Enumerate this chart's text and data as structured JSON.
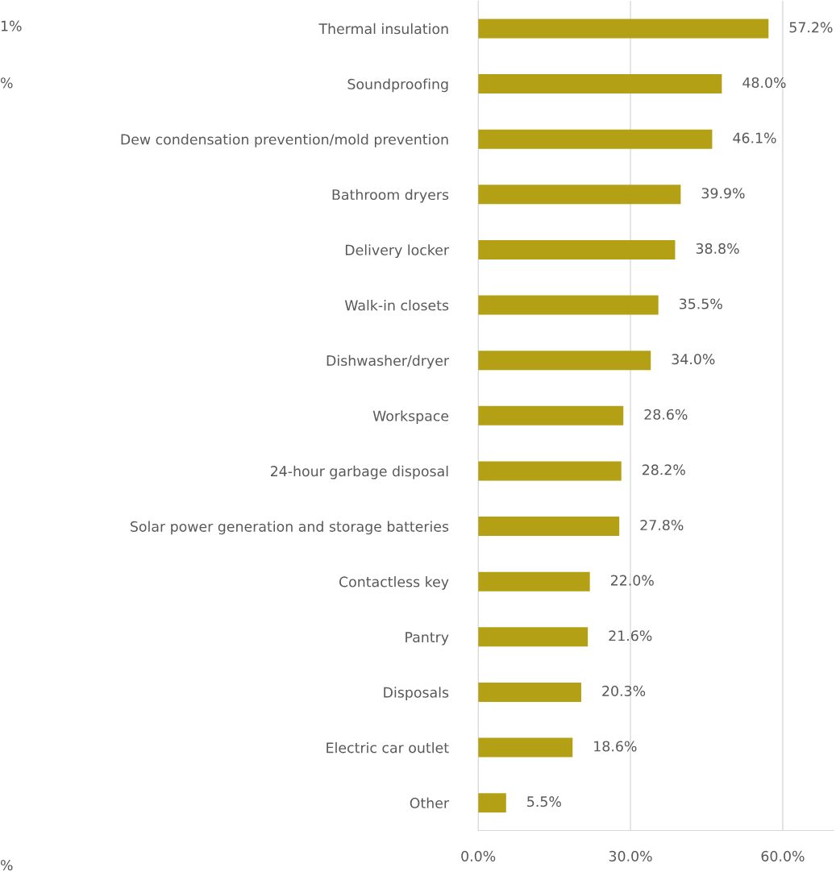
{
  "chart_data": {
    "type": "bar",
    "orientation": "horizontal",
    "categories": [
      "Thermal insulation",
      "Soundproofing",
      "Dew condensation prevention/mold prevention",
      "Bathroom dryers",
      "Delivery locker",
      "Walk-in closets",
      "Dishwasher/dryer",
      "Workspace",
      "24-hour garbage disposal",
      "Solar power generation and storage batteries",
      "Contactless key",
      "Pantry",
      "Disposals",
      "Electric car outlet",
      "Other"
    ],
    "values": [
      57.2,
      48.0,
      46.1,
      39.9,
      38.8,
      35.5,
      34.0,
      28.6,
      28.2,
      27.8,
      22.0,
      21.6,
      20.3,
      18.6,
      5.5
    ],
    "value_labels": [
      "57.2%",
      "48.0%",
      "46.1%",
      "39.9%",
      "38.8%",
      "35.5%",
      "34.0%",
      "28.6%",
      "28.2%",
      "27.8%",
      "22.0%",
      "21.6%",
      "20.3%",
      "18.6%",
      "5.5%"
    ],
    "color": "#b4a014",
    "xlim": [
      0,
      70
    ],
    "xticks": [
      {
        "value": 0,
        "label": "0.0%"
      },
      {
        "value": 30,
        "label": "30.0%"
      },
      {
        "value": 60,
        "label": "60.0%"
      }
    ],
    "grid": "x",
    "annotations": [
      "1%",
      "%",
      "%"
    ]
  }
}
